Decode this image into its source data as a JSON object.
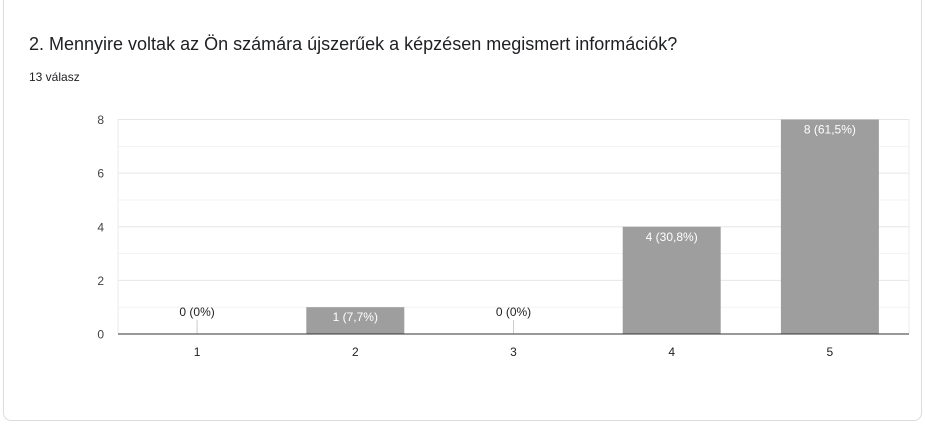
{
  "question": {
    "title": "2. Mennyire voltak az Ön számára újszerűek a képzésen megismert információk?",
    "response_count": "13 válasz"
  },
  "colors": {
    "bar": "#9e9e9e",
    "gridline": "#ebebeb",
    "axis": "#333333",
    "label_inside": "#ffffff",
    "label_outside": "#222222"
  },
  "chart_data": {
    "type": "bar",
    "title": "",
    "xlabel": "",
    "ylabel": "",
    "categories": [
      "1",
      "2",
      "3",
      "4",
      "5"
    ],
    "values": [
      0,
      1,
      0,
      4,
      8
    ],
    "data_labels": [
      "0 (0%)",
      "1 (7,7%)",
      "0 (0%)",
      "4 (30,8%)",
      "8 (61,5%)"
    ],
    "ylim": [
      0,
      8
    ],
    "yticks": [
      "0",
      "2",
      "4",
      "6",
      "8"
    ],
    "grid": true,
    "legend": "none"
  }
}
